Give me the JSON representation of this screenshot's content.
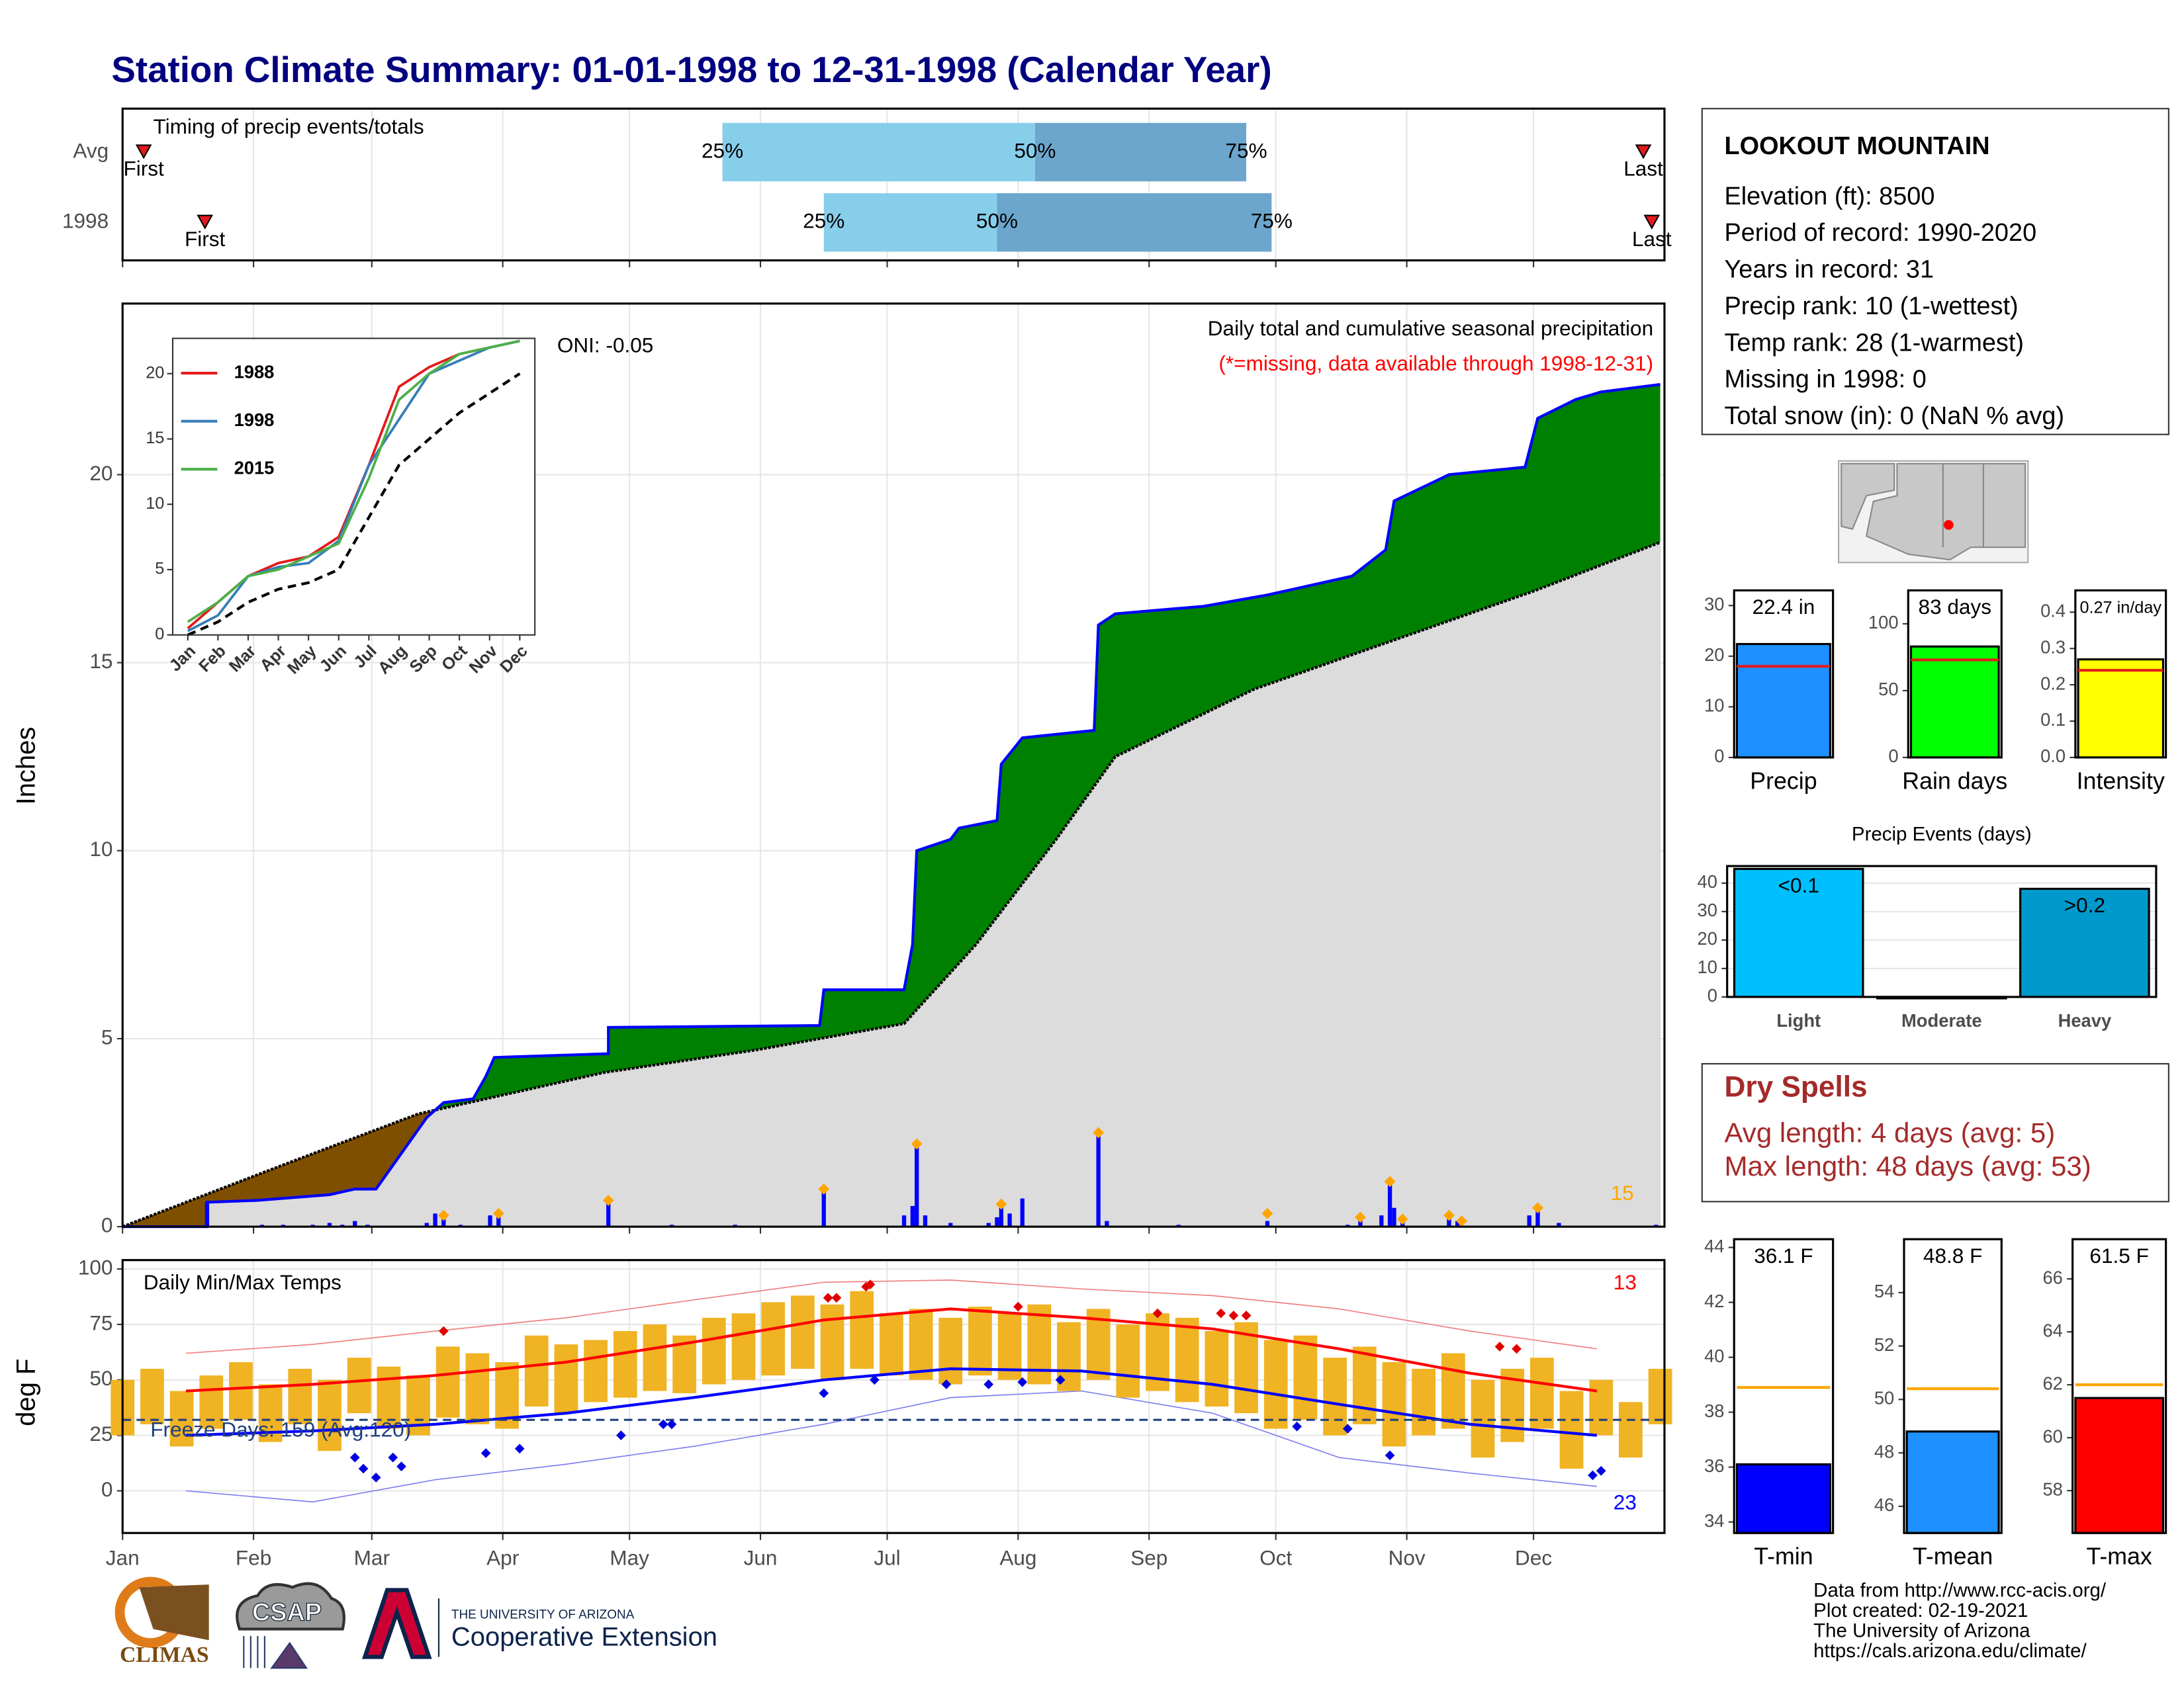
{
  "title": "Station Climate Summary: 01-01-1998 to 12-31-1998 (Calendar Year)",
  "chart_data": [
    {
      "type": "timing",
      "title": "Timing of precip events/totals",
      "xlim": [
        0,
        365
      ],
      "markers": {
        "first": "First",
        "q25": "25%",
        "q50": "50%",
        "q75": "75%",
        "last": "Last"
      },
      "colors": {
        "lower": "#87ceeb",
        "upper": "#6ca6cd",
        "event": "#e31a1c"
      },
      "rows": [
        {
          "label": "Avg",
          "first": 5,
          "q25": 142,
          "q50": 216,
          "q75": 266,
          "last": 360
        },
        {
          "label": "1998",
          "first": 19.5,
          "q25": 166,
          "q50": 207,
          "q75": 272,
          "last": 362
        }
      ]
    },
    {
      "type": "area",
      "title": "Daily total and cumulative seasonal precipitation",
      "subtitle": "(*=missing, data available through 1998-12-31)",
      "annotations": [
        "ONI: -0.05",
        "15"
      ],
      "ylabel": "Inches",
      "xlim": [
        0,
        365
      ],
      "ylim": [
        0,
        24.55
      ],
      "yticks": [
        0,
        5,
        10,
        15,
        20
      ],
      "grid": true,
      "cumulative": {
        "color": "#0000ff",
        "above_color": "#008000",
        "x": [
          0,
          20,
          20,
          32,
          49,
          55,
          60,
          72,
          76,
          83,
          86,
          88,
          115,
          115,
          165,
          166,
          185,
          187,
          188,
          196,
          198,
          207,
          208,
          213,
          230,
          231,
          235,
          256,
          271,
          291,
          299,
          301,
          314,
          332,
          335,
          344,
          350,
          364
        ],
        "values": [
          0,
          0,
          0.65,
          0.7,
          0.85,
          1.0,
          1.0,
          2.9,
          3.3,
          3.4,
          4.0,
          4.5,
          4.6,
          5.3,
          5.35,
          6.3,
          6.3,
          7.5,
          10.0,
          10.3,
          10.6,
          10.8,
          12.3,
          13.0,
          13.2,
          16.0,
          16.3,
          16.5,
          16.8,
          17.3,
          18.0,
          19.3,
          20.0,
          20.2,
          21.5,
          22.0,
          22.2,
          22.4
        ]
      },
      "average": {
        "color": "#dcdcdc",
        "line_color": "#000000",
        "above_color": "#7f4f00",
        "x": [
          0,
          37,
          70,
          86,
          114,
          150,
          165,
          185,
          202,
          221,
          235,
          268,
          301,
          334,
          364
        ],
        "values": [
          0,
          1.6,
          3.0,
          3.4,
          4.1,
          4.7,
          5.0,
          5.4,
          7.5,
          10.3,
          12.5,
          14.3,
          15.6,
          16.9,
          18.2
        ]
      },
      "daily": {
        "color": "#0000ff",
        "x": [
          20,
          33,
          38,
          45,
          49,
          52,
          55,
          58,
          72,
          74,
          76,
          80,
          87,
          89,
          115,
          130,
          145,
          166,
          185,
          187,
          188,
          190,
          196,
          205,
          207,
          208,
          210,
          213,
          231,
          233,
          250,
          271,
          290,
          293,
          298,
          300,
          301,
          303,
          314,
          316,
          333,
          335,
          340,
          363
        ],
        "values": [
          0.65,
          0.05,
          0.05,
          0.05,
          0.1,
          0.05,
          0.15,
          0.05,
          0.1,
          0.35,
          0.2,
          0.05,
          0.3,
          0.25,
          0.7,
          0.05,
          0.05,
          0.95,
          0.3,
          0.55,
          2.2,
          0.3,
          0.1,
          0.1,
          0.25,
          0.5,
          0.35,
          0.75,
          2.5,
          0.15,
          0.05,
          0.15,
          0.05,
          0.25,
          0.3,
          1.2,
          0.5,
          0.25,
          0.3,
          0.15,
          0.3,
          0.5,
          0.1,
          0.05
        ]
      },
      "markers": {
        "color": "#ffa500",
        "x": [
          76,
          89,
          115,
          166,
          188,
          208,
          231,
          271,
          293,
          300,
          303,
          314,
          317,
          335
        ],
        "values": [
          0.3,
          0.35,
          0.7,
          1.0,
          2.2,
          0.6,
          2.5,
          0.35,
          0.25,
          1.2,
          0.2,
          0.3,
          0.15,
          0.5
        ]
      }
    },
    {
      "type": "line",
      "categories": [
        "Jan",
        "Feb",
        "Mar",
        "Apr",
        "May",
        "Jun",
        "Jul",
        "Aug",
        "Sep",
        "Oct",
        "Nov",
        "Dec"
      ],
      "ylim": [
        0,
        22.7
      ],
      "yticks": [
        0,
        5,
        10,
        15,
        20
      ],
      "series": [
        {
          "name": "1988",
          "color": "#e41a1c",
          "values": [
            0.5,
            2.5,
            4.5,
            5.5,
            6,
            7.5,
            13,
            19,
            20.5,
            21.5,
            22,
            22.5
          ]
        },
        {
          "name": "1998",
          "color": "#377eb8",
          "values": [
            0.3,
            1.5,
            4.5,
            5.2,
            5.5,
            7.2,
            13,
            16.5,
            20,
            21,
            22,
            22.5
          ]
        },
        {
          "name": "2015",
          "color": "#4daf4a",
          "values": [
            1,
            2.5,
            4.5,
            5,
            6,
            7,
            12,
            18,
            20,
            21.5,
            22,
            22.5
          ]
        }
      ],
      "reference": {
        "color": "#000000",
        "values": [
          0,
          1,
          2.5,
          3.5,
          4,
          5,
          9,
          13,
          15,
          17,
          18.5,
          20
        ]
      }
    },
    {
      "type": "temperature",
      "title": "Daily Min/Max Temps",
      "ylabel": "deg F",
      "annotations": [
        {
          "text": "13",
          "color": "#ff0000"
        },
        {
          "text": "23",
          "color": "#0000ff"
        }
      ],
      "freeze": {
        "value": 32,
        "label": "Freeze Days: 159 (Avg:120)",
        "color": "#1f3f7f"
      },
      "xlim": [
        0,
        365
      ],
      "ylim": [
        -19,
        104
      ],
      "yticks": [
        0,
        25,
        50,
        75,
        100
      ],
      "grid": true,
      "xticks": [
        {
          "value": 0,
          "label": "Jan"
        },
        {
          "value": 31,
          "label": "Feb"
        },
        {
          "value": 59,
          "label": "Mar"
        },
        {
          "value": 90,
          "label": "Apr"
        },
        {
          "value": 120,
          "label": "May"
        },
        {
          "value": 151,
          "label": "Jun"
        },
        {
          "value": 181,
          "label": "Jul"
        },
        {
          "value": 212,
          "label": "Aug"
        },
        {
          "value": 243,
          "label": "Sep"
        },
        {
          "value": 273,
          "label": "Oct"
        },
        {
          "value": 304,
          "label": "Nov"
        },
        {
          "value": 334,
          "label": "Dec"
        }
      ],
      "color": "#f0b323",
      "x": [
        0,
        7,
        14,
        21,
        28,
        35,
        42,
        49,
        56,
        63,
        70,
        77,
        84,
        91,
        98,
        105,
        112,
        119,
        126,
        133,
        140,
        147,
        154,
        161,
        168,
        175,
        182,
        189,
        196,
        203,
        210,
        217,
        224,
        231,
        238,
        245,
        252,
        259,
        266,
        273,
        280,
        287,
        294,
        301,
        308,
        315,
        322,
        329,
        336,
        343,
        350,
        357,
        364
      ],
      "max": [
        50,
        55,
        45,
        52,
        58,
        48,
        55,
        50,
        60,
        56,
        52,
        65,
        62,
        58,
        70,
        66,
        68,
        72,
        75,
        70,
        78,
        80,
        85,
        88,
        84,
        90,
        80,
        82,
        78,
        83,
        80,
        84,
        76,
        82,
        75,
        80,
        78,
        72,
        76,
        68,
        70,
        60,
        65,
        58,
        55,
        62,
        50,
        55,
        60,
        45,
        50,
        40,
        55
      ],
      "min": [
        25,
        30,
        20,
        28,
        32,
        22,
        30,
        18,
        35,
        28,
        25,
        33,
        30,
        28,
        38,
        35,
        40,
        42,
        45,
        44,
        48,
        50,
        52,
        55,
        50,
        55,
        52,
        50,
        48,
        52,
        50,
        48,
        45,
        50,
        42,
        45,
        40,
        38,
        35,
        28,
        32,
        25,
        30,
        20,
        25,
        28,
        15,
        22,
        28,
        10,
        25,
        15,
        30
      ],
      "normals": {
        "max_color": "#ff0000",
        "min_color": "#0000ff",
        "x": [
          15,
          45,
          74,
          105,
          135,
          166,
          196,
          227,
          258,
          288,
          319,
          349
        ],
        "max": [
          45,
          48,
          52,
          58,
          67,
          77,
          82,
          78,
          73,
          64,
          53,
          45
        ],
        "min": [
          25,
          27,
          30,
          35,
          42,
          50,
          55,
          54,
          48,
          39,
          30,
          25
        ]
      },
      "records": {
        "max_color": "#f08080",
        "min_color": "#8080f0",
        "x": [
          15,
          45,
          74,
          105,
          135,
          166,
          196,
          227,
          258,
          288,
          319,
          349
        ],
        "max": [
          62,
          66,
          72,
          78,
          86,
          94,
          95,
          91,
          88,
          82,
          72,
          64
        ],
        "min": [
          0,
          -5,
          5,
          12,
          20,
          30,
          42,
          45,
          35,
          15,
          8,
          2
        ]
      },
      "record_high_days": {
        "color": "#e00000",
        "x": [
          76,
          167,
          169,
          176,
          177,
          212,
          245,
          260,
          263,
          266,
          326,
          330
        ],
        "values": [
          72,
          87,
          87,
          92,
          93,
          83,
          80,
          80,
          79,
          79,
          65,
          64
        ]
      },
      "record_low_days": {
        "color": "#0000e0",
        "x": [
          55,
          57,
          60,
          64,
          66,
          86,
          94,
          118,
          128,
          130,
          166,
          178,
          195,
          205,
          213,
          222,
          278,
          290,
          300,
          348,
          350
        ],
        "values": [
          15,
          10,
          6,
          15,
          11,
          17,
          19,
          25,
          30,
          30,
          44,
          50,
          48,
          48,
          49,
          50,
          29,
          28,
          16,
          7,
          9
        ]
      }
    },
    {
      "type": "bar",
      "categories": [
        "Precip"
      ],
      "values": [
        22.4
      ],
      "value_labels": [
        "22.4 in"
      ],
      "color": "#1e90ff",
      "reference": 18,
      "reference_color": "#e41a1c",
      "ylim": [
        0,
        33
      ],
      "yticks": [
        0,
        10,
        20,
        30
      ]
    },
    {
      "type": "bar",
      "categories": [
        "Rain days"
      ],
      "values": [
        83
      ],
      "value_labels": [
        "83 days"
      ],
      "color": "#00ff00",
      "reference": 73,
      "reference_color": "#e41a1c",
      "ylim": [
        0,
        125
      ],
      "yticks": [
        0,
        50,
        100
      ]
    },
    {
      "type": "bar",
      "categories": [
        "Intensity"
      ],
      "values": [
        0.27
      ],
      "value_labels": [
        "0.27 in/day"
      ],
      "color": "#ffff00",
      "reference": 0.24,
      "reference_color": "#e41a1c",
      "ylim": [
        0,
        0.46
      ],
      "yticks": [
        {
          "value": 0,
          "label": "0.0"
        },
        0.1,
        0.2,
        0.3,
        0.4
      ]
    },
    {
      "type": "bar",
      "title": "Precip Events (days)",
      "categories": [
        "Light",
        "Moderate",
        "Heavy"
      ],
      "values": [
        45,
        0,
        38
      ],
      "value_labels": [
        "<0.1",
        null,
        ">0.2"
      ],
      "colors": [
        "#00bfff",
        "#555555",
        "#0099cc"
      ],
      "ylim": [
        0,
        46
      ],
      "yticks": [
        0,
        10,
        20,
        30,
        40
      ],
      "grid": true
    },
    {
      "type": "bar",
      "categories": [
        "T-min"
      ],
      "values": [
        36.1
      ],
      "value_labels": [
        "36.1 F"
      ],
      "color": "#0000ff",
      "reference": 38.9,
      "reference_color": "#ffa500",
      "ylim": [
        33.6,
        44.3
      ],
      "yticks": [
        34,
        36,
        38,
        40,
        42,
        44
      ]
    },
    {
      "type": "bar",
      "categories": [
        "T-mean"
      ],
      "values": [
        48.8
      ],
      "value_labels": [
        "48.8 F"
      ],
      "color": "#1e90ff",
      "reference": 50.4,
      "reference_color": "#ffa500",
      "ylim": [
        45,
        56
      ],
      "yticks": [
        46,
        48,
        50,
        52,
        54
      ]
    },
    {
      "type": "bar",
      "categories": [
        "T-max"
      ],
      "values": [
        61.5
      ],
      "value_labels": [
        "61.5 F"
      ],
      "color": "#ff0000",
      "reference": 62,
      "reference_color": "#ffa500",
      "ylim": [
        56.4,
        67.5
      ],
      "yticks": [
        58,
        60,
        62,
        64,
        66
      ]
    }
  ],
  "station": {
    "name": "LOOKOUT MOUNTAIN",
    "lines": [
      "Elevation (ft): 8500",
      "Period of record: 1990-2020",
      "Years in record: 31",
      "Precip rank: 10 (1-wettest)",
      "Temp rank: 28 (1-warmest)",
      "Missing in 1998: 0",
      "Total snow (in): 0 (NaN % avg)"
    ]
  },
  "dry_spells": {
    "title": "Dry Spells",
    "lines": [
      "Avg length: 4 days (avg: 5)",
      "Max length: 48 days (avg: 53)"
    ]
  },
  "logos": {
    "climas": "CLIMAS",
    "csap": "CSAP",
    "university": "THE UNIVERSITY OF ARIZONA",
    "extension": "Cooperative Extension"
  },
  "credits": [
    "Data from http://www.rcc-acis.org/",
    "Plot created: 02-19-2021",
    "The University of Arizona",
    "https://cals.arizona.edu/climate/"
  ]
}
